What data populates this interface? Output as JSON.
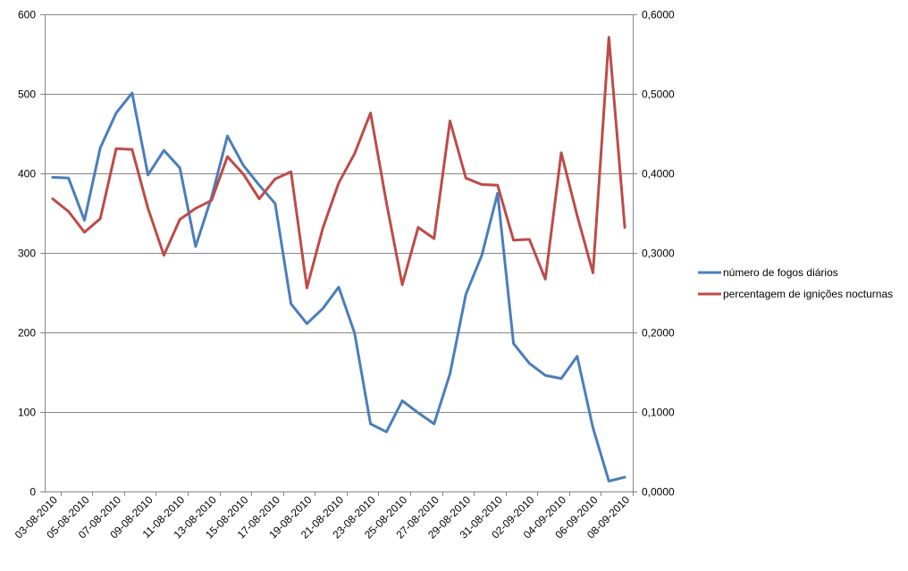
{
  "chart_data": {
    "type": "line",
    "title": "",
    "xlabel": "",
    "ylabel": "",
    "y2label": "",
    "grid": true,
    "legend_placement": "right",
    "x": [
      "03-08-2010",
      "04-08-2010",
      "05-08-2010",
      "06-08-2010",
      "07-08-2010",
      "08-08-2010",
      "09-08-2010",
      "10-08-2010",
      "11-08-2010",
      "12-08-2010",
      "13-08-2010",
      "14-08-2010",
      "15-08-2010",
      "16-08-2010",
      "17-08-2010",
      "18-08-2010",
      "19-08-2010",
      "20-08-2010",
      "21-08-2010",
      "22-08-2010",
      "23-08-2010",
      "24-08-2010",
      "25-08-2010",
      "26-08-2010",
      "27-08-2010",
      "28-08-2010",
      "29-08-2010",
      "30-08-2010",
      "31-08-2010",
      "01-09-2010",
      "02-09-2010",
      "03-09-2010",
      "04-09-2010",
      "05-09-2010",
      "06-09-2010",
      "07-09-2010",
      "08-09-2010"
    ],
    "x_tick_labels": [
      "03-08-2010",
      "05-08-2010",
      "07-08-2010",
      "09-08-2010",
      "11-08-2010",
      "13-08-2010",
      "15-08-2010",
      "17-08-2010",
      "19-08-2010",
      "21-08-2010",
      "23-08-2010",
      "25-08-2010",
      "27-08-2010",
      "29-08-2010",
      "31-08-2010",
      "02-09-2010",
      "04-09-2010",
      "06-09-2010",
      "08-09-2010"
    ],
    "ylim": [
      0,
      600
    ],
    "y_ticks": [
      "0",
      "100",
      "200",
      "300",
      "400",
      "500",
      "600"
    ],
    "y2lim": [
      0,
      0.6
    ],
    "y2_ticks": [
      "0,0000",
      "0,1000",
      "0,2000",
      "0,3000",
      "0,4000",
      "0,5000",
      "0,6000"
    ],
    "series": [
      {
        "name": "número de fogos diários",
        "axis": "left",
        "color": "#4a7ebb",
        "values": [
          395,
          394,
          341,
          432,
          476,
          501,
          398,
          429,
          407,
          308,
          370,
          447,
          410,
          385,
          362,
          236,
          211,
          230,
          257,
          199,
          85,
          75,
          114,
          99,
          85,
          148,
          248,
          297,
          375,
          186,
          161,
          146,
          142,
          170,
          80,
          13,
          18
        ]
      },
      {
        "name": "percentagem de ignições nocturnas",
        "axis": "right",
        "color": "#be4b48",
        "values": [
          0.368,
          0.352,
          0.326,
          0.343,
          0.431,
          0.43,
          0.356,
          0.297,
          0.342,
          0.356,
          0.366,
          0.421,
          0.399,
          0.368,
          0.393,
          0.402,
          0.256,
          0.331,
          0.388,
          0.425,
          0.476,
          0.363,
          0.26,
          0.332,
          0.318,
          0.466,
          0.394,
          0.386,
          0.385,
          0.316,
          0.317,
          0.267,
          0.426,
          0.347,
          0.275,
          0.571,
          0.332
        ]
      }
    ]
  }
}
